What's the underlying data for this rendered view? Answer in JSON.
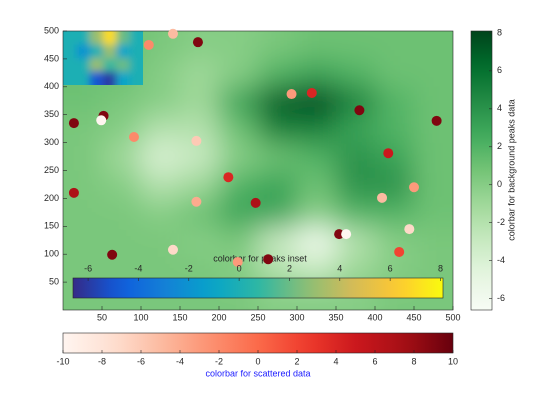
{
  "chart_data": {
    "type": "heatmap",
    "xlim": [
      0,
      500
    ],
    "ylim": [
      0,
      500
    ],
    "xticks": [
      50,
      100,
      150,
      200,
      250,
      300,
      350,
      400,
      450,
      500
    ],
    "yticks": [
      50,
      100,
      150,
      200,
      250,
      300,
      350,
      400,
      450,
      500
    ],
    "heatmap": {
      "x": [
        25,
        75,
        125,
        175,
        225,
        275,
        325,
        375,
        425,
        475
      ],
      "y": [
        25,
        75,
        125,
        175,
        225,
        275,
        325,
        375,
        425,
        475
      ],
      "z": [
        [
          0.5,
          0.5,
          0.5,
          0.5,
          0.5,
          0,
          0,
          0,
          0.5,
          0.5
        ],
        [
          0.5,
          0.5,
          0.5,
          0.5,
          0,
          -2,
          -3,
          -1,
          0,
          0.5
        ],
        [
          0.5,
          0.5,
          0.5,
          0,
          0.5,
          -3,
          -6,
          -2,
          0,
          0.5
        ],
        [
          0.5,
          0.5,
          0,
          1,
          3,
          3,
          0,
          2,
          2,
          1
        ],
        [
          0.5,
          0,
          -2,
          -1,
          2,
          3,
          1,
          4,
          4,
          1
        ],
        [
          0.5,
          -1,
          -4,
          -3,
          0,
          1,
          2,
          4,
          3,
          1
        ],
        [
          0.5,
          0,
          -2,
          -2,
          1,
          5,
          5,
          3,
          2,
          1
        ],
        [
          1,
          0.5,
          0,
          -1,
          3,
          7,
          8,
          5,
          2,
          1
        ],
        [
          1,
          1,
          0,
          -1,
          0,
          2,
          3,
          2,
          1,
          1
        ],
        [
          1,
          1,
          0.5,
          0,
          0,
          0.5,
          1,
          1,
          1,
          1
        ]
      ],
      "clim": [
        -6.6,
        8.1
      ],
      "colorbar_ticks": [
        -6,
        -4,
        -2,
        0,
        2,
        4,
        6,
        8
      ],
      "colorbar_label": "colorbar for background peaks data"
    },
    "scatter": {
      "x": [
        14,
        52,
        49,
        91,
        14,
        110,
        141,
        173,
        171,
        212,
        171,
        247,
        141,
        63,
        224,
        263,
        293,
        319,
        380,
        417,
        479,
        409,
        450,
        444,
        354,
        363,
        431
      ],
      "y": [
        335,
        348,
        340,
        310,
        210,
        475,
        495,
        480,
        303,
        238,
        194,
        192,
        108,
        99,
        86,
        91,
        387,
        389,
        358,
        281,
        339,
        201,
        220,
        145,
        136,
        136,
        104
      ],
      "values": [
        9,
        9,
        -10,
        -2,
        7,
        -2,
        -5,
        9,
        -6,
        4,
        -4,
        7,
        -7,
        9,
        -3,
        9,
        -3,
        4,
        9,
        5,
        9,
        -5,
        -3,
        -7,
        9,
        -10,
        2
      ],
      "clim": [
        -10,
        10
      ],
      "colorbar_ticks": [
        -10,
        -8,
        -6,
        -4,
        -2,
        0,
        2,
        4,
        6,
        8,
        10
      ],
      "colorbar_label": "colorbar for scattered data"
    },
    "inset": {
      "z": [
        [
          0,
          0,
          3,
          7,
          2,
          0
        ],
        [
          0,
          -2,
          0,
          3,
          -1,
          0
        ],
        [
          0,
          0,
          3,
          1,
          2,
          0
        ],
        [
          0,
          0,
          -5,
          -6,
          -1,
          0
        ]
      ],
      "clim": [
        -6.6,
        8.1
      ],
      "colorbar_ticks": [
        -6,
        -4,
        -2,
        0,
        2,
        4,
        6,
        8
      ],
      "colorbar_label": "colorbar for peaks inset"
    }
  }
}
